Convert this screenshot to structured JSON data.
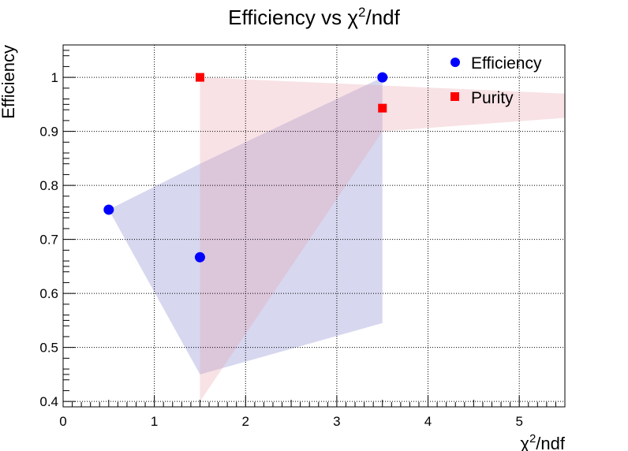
{
  "chart_data": {
    "type": "scatter",
    "title": "Efficiency vs  χ²/ndf",
    "title_parts": {
      "prefix": "Efficiency vs  χ",
      "sup": "2",
      "suffix": "/ndf"
    },
    "xlabel_parts": {
      "prefix": "χ",
      "sup": "2",
      "suffix": "/ndf"
    },
    "ylabel": "Efficiency",
    "xlim": [
      0,
      5.5
    ],
    "ylim": [
      0.39,
      1.06
    ],
    "x_ticks": [
      0,
      1,
      2,
      3,
      4,
      5
    ],
    "y_ticks": [
      0.4,
      0.5,
      0.6,
      0.7,
      0.8,
      0.9,
      1
    ],
    "grid": true,
    "legend_position": "top-right",
    "series": [
      {
        "name": "Efficiency",
        "marker": "circle",
        "color": "#0000ff",
        "band_color": "#8d8dd0",
        "points": [
          {
            "x": 0.5,
            "y": 0.755,
            "band_low": 0.755,
            "band_high": 0.755
          },
          {
            "x": 1.5,
            "y": 0.667,
            "band_low": 0.45,
            "band_high": 0.84
          },
          {
            "x": 3.5,
            "y": 1.0,
            "band_low": 0.545,
            "band_high": 1.0
          }
        ]
      },
      {
        "name": "Purity",
        "marker": "square",
        "color": "#ff0000",
        "band_color": "#e8a0a8",
        "points": [
          {
            "x": 1.5,
            "y": 1.0,
            "band_low": 0.4,
            "band_high": 1.0
          },
          {
            "x": 3.5,
            "y": 0.943,
            "band_low": 0.9,
            "band_high": 0.985
          },
          {
            "x": 5.5,
            "y": 0.943,
            "band_low": 0.925,
            "band_high": 0.97
          }
        ]
      }
    ]
  }
}
